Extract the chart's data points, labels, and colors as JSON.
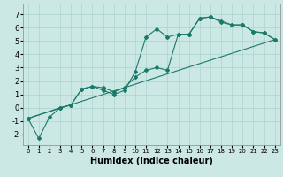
{
  "title": "",
  "xlabel": "Humidex (Indice chaleur)",
  "ylabel": "",
  "background_color": "#cce8e4",
  "grid_color": "#aad4cc",
  "line_color": "#1a7a6a",
  "xlim": [
    -0.5,
    23.5
  ],
  "ylim": [
    -2.8,
    7.8
  ],
  "xticks": [
    0,
    1,
    2,
    3,
    4,
    5,
    6,
    7,
    8,
    9,
    10,
    11,
    12,
    13,
    14,
    15,
    16,
    17,
    18,
    19,
    20,
    21,
    22,
    23
  ],
  "yticks": [
    -2,
    -1,
    0,
    1,
    2,
    3,
    4,
    5,
    6,
    7
  ],
  "line1_x": [
    0,
    1,
    2,
    3,
    4,
    5,
    6,
    7,
    8,
    9,
    10,
    11,
    12,
    13,
    14,
    15,
    16,
    17,
    18,
    19,
    20,
    21,
    22,
    23
  ],
  "line1_y": [
    -0.8,
    -2.3,
    -0.7,
    0.0,
    0.2,
    1.4,
    1.6,
    1.3,
    1.0,
    1.3,
    2.7,
    5.3,
    5.9,
    5.3,
    5.5,
    5.5,
    6.7,
    6.8,
    6.4,
    6.2,
    6.2,
    5.7,
    5.6,
    5.1
  ],
  "line2_x": [
    0,
    3,
    4,
    5,
    6,
    7,
    8,
    9,
    10,
    11,
    12,
    13,
    14,
    15,
    16,
    17,
    18,
    19,
    20,
    21,
    22,
    23
  ],
  "line2_y": [
    -0.8,
    0.0,
    0.2,
    1.4,
    1.6,
    1.5,
    1.2,
    1.5,
    2.3,
    2.8,
    3.0,
    2.8,
    5.5,
    5.5,
    6.7,
    6.8,
    6.5,
    6.2,
    6.2,
    5.7,
    5.6,
    5.1
  ],
  "line3_x": [
    0,
    23
  ],
  "line3_y": [
    -0.8,
    5.1
  ],
  "marker_size": 2.0,
  "line_width": 0.8,
  "xlabel_fontsize": 7,
  "tick_fontsize_x": 5,
  "tick_fontsize_y": 6
}
